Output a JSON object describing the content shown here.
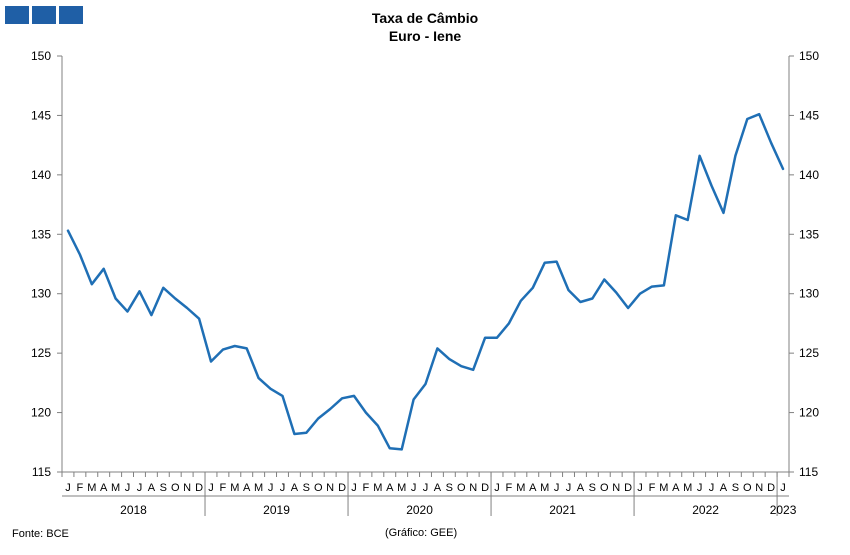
{
  "header": {
    "title_line1": "Taxa de Câmbio",
    "title_line2": "Euro - Iene"
  },
  "footer": {
    "source": "Fonte: BCE",
    "credit": "(Gráfico: GEE)"
  },
  "chart_data": {
    "type": "line",
    "title": "Taxa de Câmbio Euro - Iene",
    "xlabel": "",
    "ylabel": "",
    "ylim": [
      115,
      150
    ],
    "yticks": [
      115,
      120,
      125,
      130,
      135,
      140,
      145,
      150
    ],
    "axes": "left and right y-axes with identical scales",
    "grid": false,
    "legend": "none",
    "line_color": "#1f6fb5",
    "month_labels": [
      "J",
      "F",
      "M",
      "A",
      "M",
      "J",
      "J",
      "A",
      "S",
      "O",
      "N",
      "D",
      "J",
      "F",
      "M",
      "A",
      "M",
      "J",
      "J",
      "A",
      "S",
      "O",
      "N",
      "D",
      "J",
      "F",
      "M",
      "A",
      "M",
      "J",
      "J",
      "A",
      "S",
      "O",
      "N",
      "D",
      "J",
      "F",
      "M",
      "A",
      "M",
      "J",
      "J",
      "A",
      "S",
      "O",
      "N",
      "D",
      "J",
      "F",
      "M",
      "A",
      "M",
      "J",
      "J",
      "A",
      "S",
      "O",
      "N",
      "D",
      "J"
    ],
    "year_labels": [
      "2018",
      "2019",
      "2020",
      "2021",
      "2022",
      "2023"
    ],
    "series": [
      {
        "values": [
          135.3,
          133.3,
          130.8,
          132.1,
          129.6,
          128.5,
          130.2,
          128.2,
          130.5,
          129.6,
          128.8,
          127.9,
          124.3,
          125.3,
          125.6,
          125.4,
          122.9,
          122.0,
          121.4,
          118.2,
          118.3,
          119.5,
          120.3,
          121.2,
          121.4,
          120.0,
          118.9,
          117.0,
          116.9,
          121.1,
          122.4,
          125.4,
          124.5,
          123.9,
          123.6,
          126.3,
          126.3,
          127.5,
          129.4,
          130.5,
          132.6,
          132.7,
          130.3,
          129.3,
          129.6,
          131.2,
          130.1,
          128.8,
          130.0,
          130.6,
          130.7,
          136.6,
          136.2,
          141.6,
          139.1,
          136.8,
          141.6,
          144.7,
          145.1,
          142.7,
          140.5
        ]
      }
    ]
  }
}
